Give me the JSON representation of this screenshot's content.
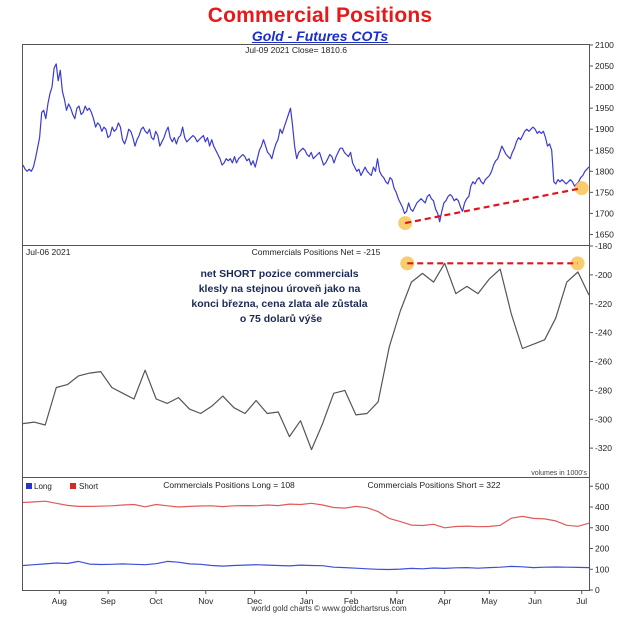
{
  "header": {
    "title": "Commercial Positions",
    "subtitle": "Gold - Futures COTs"
  },
  "footer": {
    "credit": "world gold charts © www.goldchartsrus.com"
  },
  "colors": {
    "price": "#3b3bd6",
    "net": "#555555",
    "long": "#3d50d8",
    "short": "#e05a5a",
    "highlight": "#f7c049",
    "dash": "#e0141e"
  },
  "x_axis": {
    "labels": [
      "Aug",
      "Sep",
      "Oct",
      "Nov",
      "Dec",
      "Jan",
      "Feb",
      "Mar",
      "Apr",
      "May",
      "Jun",
      "Jul"
    ],
    "label_weeks": [
      3.5,
      8.2,
      12.8,
      17.6,
      22.3,
      27.3,
      31.6,
      36,
      40.6,
      44.9,
      49.3,
      53.8
    ],
    "week_range": [
      0,
      54.5
    ]
  },
  "chart_data": [
    {
      "type": "line",
      "title": "Jul-09 2021 Close= 1810.6",
      "series": [
        {
          "name": "Gold price",
          "values": [
            1815,
            1805,
            1800,
            1805,
            1800,
            1810,
            1830,
            1855,
            1880,
            1940,
            1945,
            1925,
            1960,
            1985,
            2000,
            2045,
            2055,
            2015,
            2040,
            1990,
            1970,
            1945,
            1960,
            1950,
            1935,
            1925,
            1950,
            1955,
            1935,
            1940,
            1955,
            1945,
            1950,
            1940,
            1925,
            1905,
            1915,
            1910,
            1895,
            1905,
            1900,
            1880,
            1885,
            1905,
            1895,
            1900,
            1915,
            1905,
            1875,
            1865,
            1880,
            1900,
            1895,
            1880,
            1860,
            1875,
            1885,
            1900,
            1905,
            1895,
            1890,
            1900,
            1880,
            1875,
            1895,
            1885,
            1860,
            1870,
            1880,
            1895,
            1905,
            1880,
            1870,
            1880,
            1865,
            1880,
            1885,
            1905,
            1880,
            1870,
            1875,
            1880,
            1885,
            1880,
            1870,
            1875,
            1880,
            1885,
            1870,
            1880,
            1860,
            1875,
            1860,
            1850,
            1840,
            1830,
            1815,
            1820,
            1830,
            1825,
            1830,
            1820,
            1835,
            1820,
            1830,
            1835,
            1840,
            1835,
            1825,
            1830,
            1815,
            1825,
            1810,
            1830,
            1850,
            1860,
            1875,
            1860,
            1845,
            1840,
            1830,
            1850,
            1865,
            1875,
            1900,
            1890,
            1905,
            1920,
            1935,
            1950,
            1910,
            1860,
            1830,
            1845,
            1850,
            1855,
            1850,
            1840,
            1835,
            1845,
            1830,
            1835,
            1840,
            1845,
            1830,
            1815,
            1820,
            1830,
            1840,
            1835,
            1820,
            1835,
            1845,
            1855,
            1855,
            1845,
            1840,
            1835,
            1845,
            1820,
            1810,
            1800,
            1805,
            1790,
            1800,
            1810,
            1800,
            1795,
            1790,
            1810,
            1800,
            1830,
            1800,
            1790,
            1785,
            1775,
            1770,
            1785,
            1780,
            1760,
            1750,
            1735,
            1725,
            1715,
            1700,
            1705,
            1725,
            1710,
            1705,
            1715,
            1725,
            1730,
            1735,
            1730,
            1725,
            1740,
            1745,
            1735,
            1730,
            1710,
            1700,
            1680,
            1705,
            1725,
            1730,
            1740,
            1745,
            1740,
            1730,
            1735,
            1730,
            1715,
            1705,
            1725,
            1735,
            1740,
            1765,
            1775,
            1770,
            1780,
            1785,
            1775,
            1770,
            1780,
            1785,
            1790,
            1800,
            1815,
            1825,
            1830,
            1845,
            1860,
            1850,
            1840,
            1835,
            1830,
            1845,
            1855,
            1870,
            1880,
            1875,
            1885,
            1895,
            1900,
            1895,
            1900,
            1905,
            1900,
            1890,
            1895,
            1890,
            1895,
            1880,
            1860,
            1865,
            1850,
            1775,
            1770,
            1780,
            1775,
            1780,
            1775,
            1770,
            1775,
            1780,
            1775,
            1765,
            1770,
            1775,
            1785,
            1790,
            1800,
            1805,
            1810.6
          ]
        }
      ],
      "ylim": [
        1625,
        2100
      ],
      "yticks": [
        1650,
        1700,
        1750,
        1800,
        1850,
        1900,
        1950,
        2000,
        2050,
        2100
      ],
      "annotation_line": {
        "from": {
          "week": 36.8,
          "value": 1677
        },
        "to": {
          "week": 53.8,
          "value": 1760
        }
      }
    },
    {
      "type": "line",
      "title": "Commercials Positions Net = -215",
      "date_label": "Jul-06 2021",
      "series": [
        {
          "name": "Net",
          "values": [
            -303,
            -302,
            -304,
            -278,
            -276,
            -270,
            -268,
            -267,
            -278,
            -282,
            -286,
            -266,
            -286,
            -289,
            -285,
            -293,
            -296,
            -291,
            -284,
            -292,
            -296,
            -287,
            -296,
            -295,
            -312,
            -301,
            -321,
            -303,
            -282,
            -280,
            -297,
            -296,
            -288,
            -250,
            -225,
            -205,
            -199,
            -205,
            -192,
            -213,
            -208,
            -213,
            -203,
            -196,
            -227,
            -251,
            -248,
            -245,
            -230,
            -205,
            -198,
            -214
          ]
        }
      ],
      "ylim": [
        -340,
        -180
      ],
      "yticks": [
        -320,
        -300,
        -280,
        -260,
        -240,
        -220,
        -200,
        -180
      ],
      "annotation": "net SHORT pozice commercials klesly na stejnou úroveň jako na konci března, cena zlata ale zůstala o 75 dolarů výše",
      "annotation_lines": [
        "net SHORT pozice commercials",
        "klesly na stejnou úroveň jako na",
        "konci března, cena zlata ale zůstala",
        "o 75 dolarů výše"
      ],
      "annotation_line": {
        "from": {
          "week": 37,
          "value": -192
        },
        "to": {
          "week": 53.4,
          "value": -192
        }
      },
      "units_note": "volumes in 1000's"
    },
    {
      "type": "line",
      "title_long": "Commercials Positions Long = 108",
      "title_short": "Commercials Positions Short = 322",
      "legend": [
        "Long",
        "Short"
      ],
      "series": [
        {
          "name": "Long",
          "values": [
            118,
            122,
            126,
            130,
            128,
            138,
            125,
            123,
            124,
            126,
            124,
            122,
            127,
            138,
            134,
            126,
            124,
            118,
            115,
            118,
            120,
            122,
            120,
            118,
            116,
            120,
            118,
            117,
            110,
            108,
            105,
            102,
            100,
            99,
            101,
            104,
            102,
            106,
            104,
            107,
            108,
            105,
            108,
            110,
            114,
            112,
            108,
            110,
            111,
            110,
            109,
            108
          ]
        },
        {
          "name": "Short",
          "values": [
            422,
            425,
            428,
            418,
            408,
            403,
            403,
            404,
            406,
            410,
            412,
            401,
            412,
            406,
            400,
            403,
            405,
            406,
            402,
            406,
            407,
            406,
            410,
            407,
            414,
            412,
            418,
            410,
            398,
            395,
            403,
            397,
            378,
            345,
            330,
            313,
            311,
            317,
            300,
            306,
            308,
            305,
            306,
            312,
            346,
            355,
            345,
            343,
            333,
            312,
            307,
            322
          ]
        }
      ],
      "ylim": [
        0,
        540
      ],
      "yticks": [
        0,
        100,
        200,
        300,
        400,
        500
      ]
    }
  ]
}
